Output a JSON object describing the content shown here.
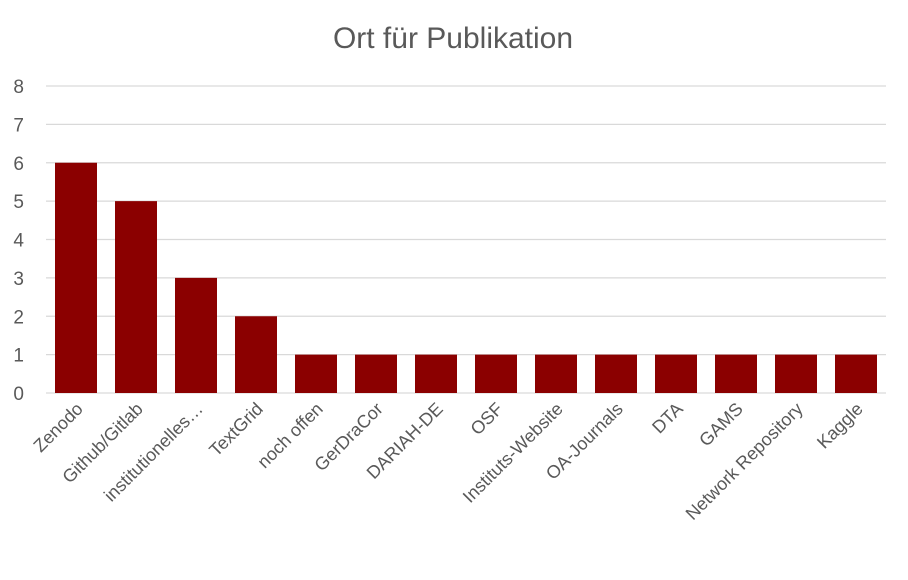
{
  "chart_data": {
    "type": "bar",
    "title": "Ort für Publikation",
    "xlabel": "",
    "ylabel": "",
    "ylim": [
      0,
      8
    ],
    "yticks": [
      0,
      1,
      2,
      3,
      4,
      5,
      6,
      7,
      8
    ],
    "grid": true,
    "legend": "none",
    "bar_color": "#8b0000",
    "categories": [
      "Zenodo",
      "Github/Gitlab",
      "institutionelles…",
      "TextGrid",
      "noch offen",
      "GerDraCor",
      "DARIAH-DE",
      "OSF",
      "Instituts-Website",
      "OA-Journals",
      "DTA",
      "GAMS",
      "Network Repository",
      "Kaggle"
    ],
    "values": [
      6,
      5,
      3,
      2,
      1,
      1,
      1,
      1,
      1,
      1,
      1,
      1,
      1,
      1
    ]
  }
}
